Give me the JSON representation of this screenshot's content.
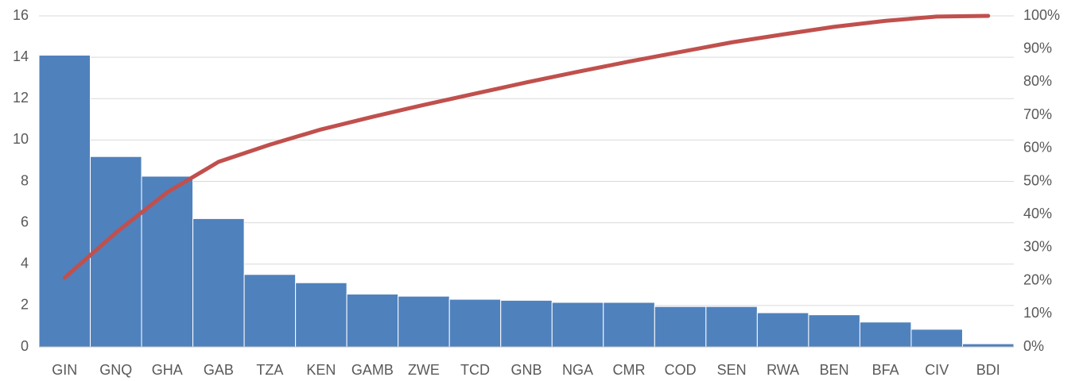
{
  "chart_data": {
    "type": "bar",
    "categories": [
      "GIN",
      "GNQ",
      "GHA",
      "GAB",
      "TZA",
      "KEN",
      "GAMB",
      "ZWE",
      "TCD",
      "GNB",
      "NGA",
      "CMR",
      "COD",
      "SEN",
      "RWA",
      "BEN",
      "BFA",
      "CIV",
      "BDI"
    ],
    "series": [
      {
        "type": "bar",
        "color": "#4f81bd",
        "values": [
          14.1,
          9.2,
          8.25,
          6.2,
          3.5,
          3.1,
          2.55,
          2.45,
          2.3,
          2.25,
          2.15,
          2.15,
          1.95,
          1.95,
          1.65,
          1.55,
          1.2,
          0.85,
          0.15
        ]
      },
      {
        "type": "line",
        "color": "#c0504d",
        "axis": "y2",
        "values": [
          20.9,
          34.5,
          46.7,
          55.9,
          61.1,
          65.7,
          69.5,
          73.1,
          76.5,
          79.9,
          83.1,
          86.2,
          89.1,
          92.0,
          94.4,
          96.7,
          98.5,
          99.8,
          100
        ]
      }
    ],
    "ylim": [
      0,
      16
    ],
    "yticks": [
      0,
      2,
      4,
      6,
      8,
      10,
      12,
      14,
      16
    ],
    "y2lim": [
      0,
      100
    ],
    "y2ticks": [
      {
        "value": 0,
        "label": "0%"
      },
      {
        "value": 10,
        "label": "10%"
      },
      {
        "value": 20,
        "label": "20%"
      },
      {
        "value": 30,
        "label": "30%"
      },
      {
        "value": 40,
        "label": "40%"
      },
      {
        "value": 50,
        "label": "50%"
      },
      {
        "value": 60,
        "label": "60%"
      },
      {
        "value": 70,
        "label": "70%"
      },
      {
        "value": 80,
        "label": "80%"
      },
      {
        "value": 90,
        "label": "90%"
      },
      {
        "value": 100,
        "label": "100%"
      }
    ],
    "grid": true
  }
}
